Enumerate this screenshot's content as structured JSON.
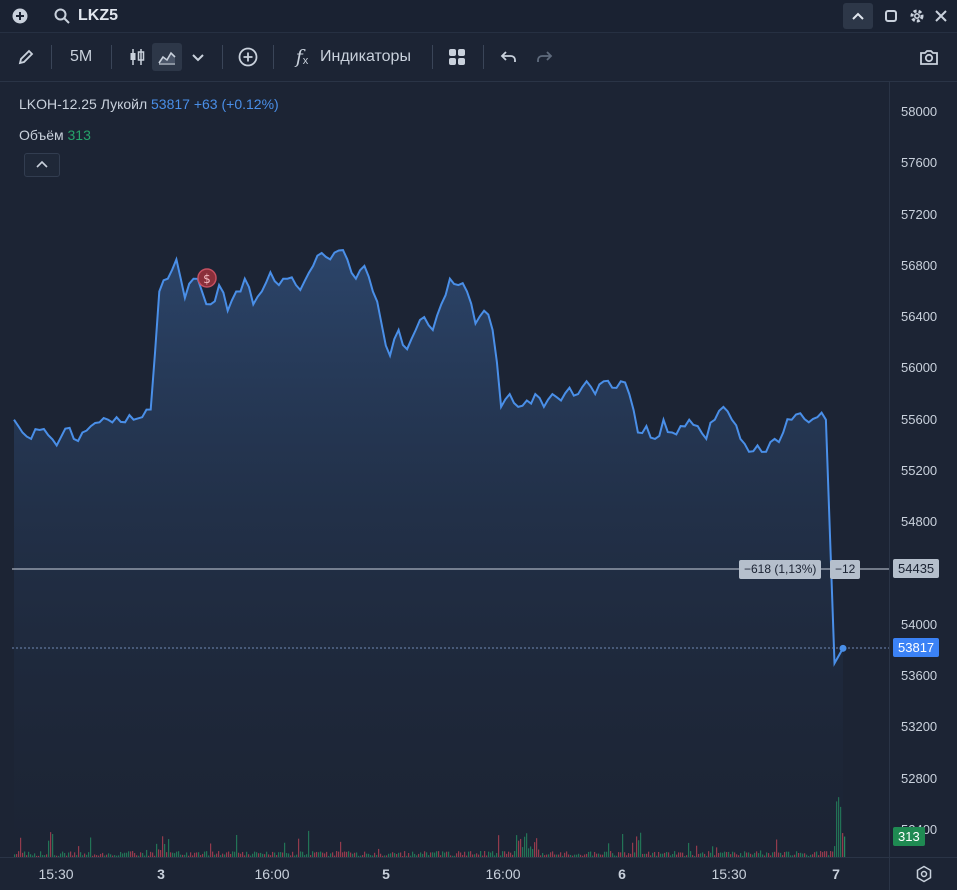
{
  "topbar": {
    "ticker": "LKZ5"
  },
  "toolbar": {
    "timeframe": "5M",
    "indicators_label": "Индикаторы"
  },
  "legend": {
    "symbol": "LKOH-12.25",
    "name": "Лукойл",
    "price": "53817",
    "change": "+63 (+0.12%)",
    "volume_label": "Объём",
    "volume_value": "313"
  },
  "crosshair": {
    "delta_label": "−618 (1,13%)",
    "delta_bars": "−12",
    "price_label": "54435"
  },
  "last_price_label": "53817",
  "volume_tag": "313",
  "colors": {
    "line": "#4a8fe8",
    "up_volume": "#26a36a",
    "down_volume": "#d9485b",
    "last_price_bg": "#3b82f6",
    "volume_tag_bg": "#1f8a52"
  },
  "chart_data": {
    "type": "area",
    "y_axis": {
      "ticks": [
        "58000",
        "57600",
        "57200",
        "56800",
        "56400",
        "56000",
        "55600",
        "55200",
        "54800",
        "54000",
        "53600",
        "53200",
        "52800",
        "52400"
      ],
      "range": [
        52250,
        58150
      ]
    },
    "x_axis": {
      "ticks": [
        "15:30",
        "3",
        "16:00",
        "5",
        "16:00",
        "6",
        "15:30",
        "7"
      ]
    },
    "series": [
      {
        "values": [
          55600,
          55500,
          55450,
          55520,
          55480,
          55400,
          55530,
          55450,
          55500,
          55550,
          55580,
          55600,
          55620,
          55580,
          55600,
          55620,
          55680,
          56600,
          56700,
          56850,
          56550,
          56700,
          56600,
          56500,
          56650,
          56450,
          56600,
          56700,
          56500,
          56600,
          56750,
          56650,
          56700,
          56650,
          56680,
          56800,
          56900,
          56850,
          56920,
          56850,
          56700,
          56800,
          56600,
          56350,
          56100,
          56300,
          56150,
          56300,
          56400,
          56300,
          56500,
          56700,
          56650,
          56600,
          56350,
          56450,
          56300,
          55700,
          55800,
          55700,
          55750,
          55800,
          55700,
          55800,
          55750,
          55850,
          55800,
          55900,
          55800,
          55900,
          55850,
          55900,
          55800,
          55500,
          55550,
          55450,
          55600,
          55500,
          55550,
          55600,
          55550,
          55450,
          55600,
          55700,
          55600,
          55450,
          55350,
          55400,
          55350,
          55450,
          55500,
          55600,
          55650,
          55580,
          55620,
          55600,
          53700,
          53817
        ]
      }
    ]
  }
}
